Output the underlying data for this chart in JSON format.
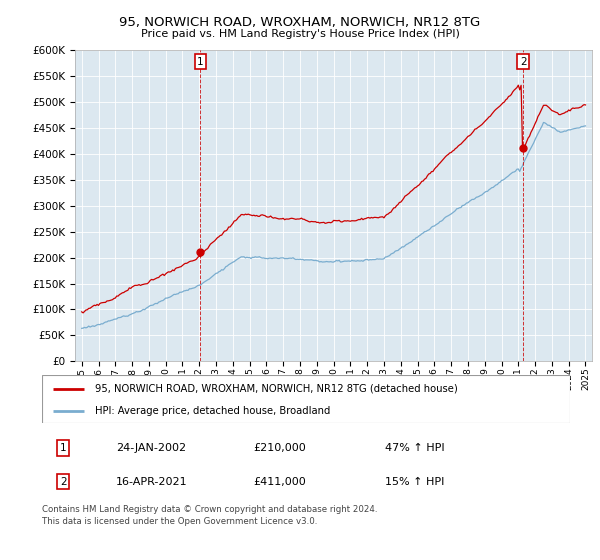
{
  "title": "95, NORWICH ROAD, WROXHAM, NORWICH, NR12 8TG",
  "subtitle": "Price paid vs. HM Land Registry's House Price Index (HPI)",
  "legend_line1": "95, NORWICH ROAD, WROXHAM, NORWICH, NR12 8TG (detached house)",
  "legend_line2": "HPI: Average price, detached house, Broadland",
  "marker1_date": "24-JAN-2002",
  "marker1_price": 210000,
  "marker1_text": "47% ↑ HPI",
  "marker2_date": "16-APR-2021",
  "marker2_price": 411000,
  "marker2_text": "15% ↑ HPI",
  "footer": "Contains HM Land Registry data © Crown copyright and database right 2024.\nThis data is licensed under the Open Government Licence v3.0.",
  "property_color": "#cc0000",
  "hpi_color": "#7aadcf",
  "plot_bg": "#dce8f0",
  "yticks": [
    0,
    50000,
    100000,
    150000,
    200000,
    250000,
    300000,
    350000,
    400000,
    450000,
    500000,
    550000,
    600000
  ],
  "marker1_year": 2002.07,
  "marker2_year": 2021.29
}
